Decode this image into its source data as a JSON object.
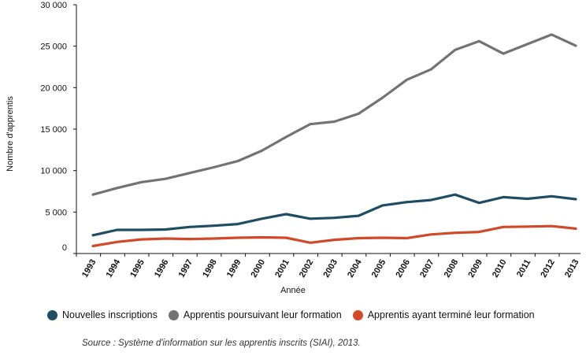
{
  "chart_data": {
    "type": "line",
    "title": "",
    "xlabel": "Année",
    "ylabel": "Nombre d'apprentis",
    "ylim": [
      0,
      30000
    ],
    "grid": false,
    "yticks": [
      "0",
      "5 000",
      "10 000",
      "15 000",
      "20 000",
      "25 000",
      "30 000"
    ],
    "ytick_values": [
      0,
      5000,
      10000,
      15000,
      20000,
      25000,
      30000
    ],
    "x": [
      "1993",
      "1994",
      "1995",
      "1996",
      "1997",
      "1998",
      "1999",
      "2000",
      "2001",
      "2002",
      "2003",
      "2004",
      "2005",
      "2006",
      "2007",
      "2008",
      "2009",
      "2010",
      "2011",
      "2012",
      "2013"
    ],
    "series": [
      {
        "name": "Nouvelles inscriptions",
        "color": "#1f4e63",
        "values": [
          2200,
          2850,
          2850,
          2900,
          3200,
          3350,
          3550,
          4200,
          4750,
          4200,
          4300,
          4550,
          5800,
          6200,
          6450,
          7100,
          6100,
          6800,
          6600,
          6900,
          6550
        ]
      },
      {
        "name": "Apprentis poursuivant leur formation",
        "color": "#737373",
        "values": [
          7100,
          7900,
          8600,
          9000,
          9700,
          10400,
          11150,
          12400,
          14050,
          15600,
          15900,
          16850,
          18800,
          20950,
          22200,
          24550,
          25600,
          24100,
          25250,
          26400,
          25050
        ]
      },
      {
        "name": "Apprentis ayant terminé leur formation",
        "color": "#d2492a",
        "values": [
          900,
          1400,
          1700,
          1800,
          1750,
          1800,
          1900,
          1950,
          1900,
          1300,
          1650,
          1850,
          1900,
          1850,
          2300,
          2500,
          2600,
          3200,
          3250,
          3300,
          3000
        ]
      }
    ]
  },
  "source": "Source : Système d'information sur les apprentis inscrits (SIAI), 2013."
}
